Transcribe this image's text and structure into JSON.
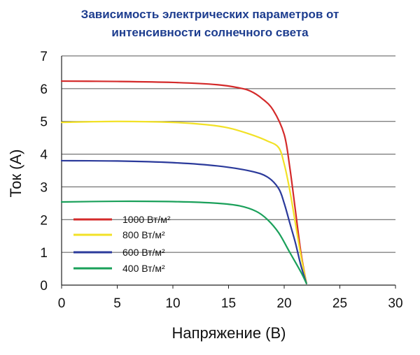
{
  "chart_data": {
    "type": "line",
    "title_line1": "Зависимость электрических параметров от",
    "title_line2": "интенсивности солнечного света",
    "xlabel": "Напряжение (В)",
    "ylabel": "Ток (А)",
    "xlim": [
      0,
      30
    ],
    "ylim": [
      0,
      7
    ],
    "xticks": [
      0,
      5,
      10,
      15,
      20,
      25,
      30
    ],
    "yticks": [
      0,
      1,
      2,
      3,
      4,
      5,
      6,
      7
    ],
    "grid": "horizontal",
    "legend_position": "bottom-left",
    "series": [
      {
        "name": "1000 Вт/м²",
        "color": "#d42a2a",
        "points": [
          [
            0,
            6.23
          ],
          [
            5,
            6.22
          ],
          [
            10,
            6.19
          ],
          [
            14,
            6.12
          ],
          [
            16,
            6.02
          ],
          [
            17,
            5.92
          ],
          [
            18,
            5.7
          ],
          [
            19,
            5.35
          ],
          [
            20,
            4.6
          ],
          [
            20.5,
            3.6
          ],
          [
            21,
            2.3
          ],
          [
            21.5,
            1.0
          ],
          [
            22,
            0.05
          ]
        ]
      },
      {
        "name": "800 Вт/м²",
        "color": "#f2e126",
        "points": [
          [
            0,
            4.97
          ],
          [
            5,
            5.0
          ],
          [
            10,
            4.97
          ],
          [
            13,
            4.9
          ],
          [
            15,
            4.8
          ],
          [
            17,
            4.6
          ],
          [
            18.5,
            4.4
          ],
          [
            19.5,
            4.2
          ],
          [
            20,
            3.7
          ],
          [
            20.5,
            2.9
          ],
          [
            21,
            1.9
          ],
          [
            21.5,
            0.9
          ],
          [
            22,
            0.05
          ]
        ]
      },
      {
        "name": "600 Вт/м²",
        "color": "#2b3a9b",
        "points": [
          [
            0,
            3.8
          ],
          [
            5,
            3.79
          ],
          [
            10,
            3.74
          ],
          [
            14,
            3.64
          ],
          [
            17,
            3.48
          ],
          [
            18.5,
            3.3
          ],
          [
            19.5,
            2.95
          ],
          [
            20,
            2.5
          ],
          [
            20.5,
            1.9
          ],
          [
            21,
            1.3
          ],
          [
            21.5,
            0.6
          ],
          [
            22,
            0.05
          ]
        ]
      },
      {
        "name": "400 Вт/м²",
        "color": "#1aa05a",
        "points": [
          [
            0,
            2.54
          ],
          [
            5,
            2.56
          ],
          [
            10,
            2.55
          ],
          [
            14,
            2.5
          ],
          [
            16,
            2.42
          ],
          [
            17.5,
            2.25
          ],
          [
            18.5,
            2.0
          ],
          [
            19.5,
            1.6
          ],
          [
            20.5,
            1.0
          ],
          [
            21.5,
            0.4
          ],
          [
            22,
            0.05
          ]
        ]
      }
    ]
  }
}
